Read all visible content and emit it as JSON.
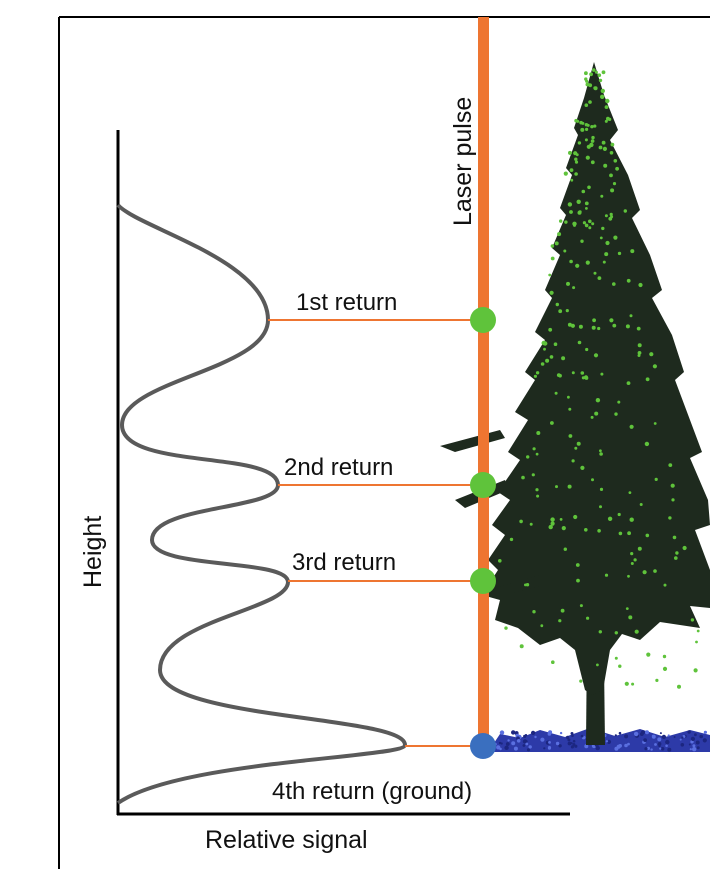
{
  "labels": {
    "laser_pulse": "Laser pulse",
    "height": "Height",
    "relative_signal": "Relative signal"
  },
  "returns": [
    {
      "label": "1st return",
      "type": "vegetation"
    },
    {
      "label": "2nd return",
      "type": "vegetation"
    },
    {
      "label": "3rd return",
      "type": "vegetation"
    },
    {
      "label": "4th return (ground)",
      "type": "ground"
    }
  ],
  "colors": {
    "laser": "#ee7531",
    "vegetation_return": "#5fc33b",
    "ground_return": "#3a6fbf",
    "waveform": "#5a5a5a",
    "tree": "#1e2a1e",
    "ground_cover": "#2d3aa8"
  }
}
